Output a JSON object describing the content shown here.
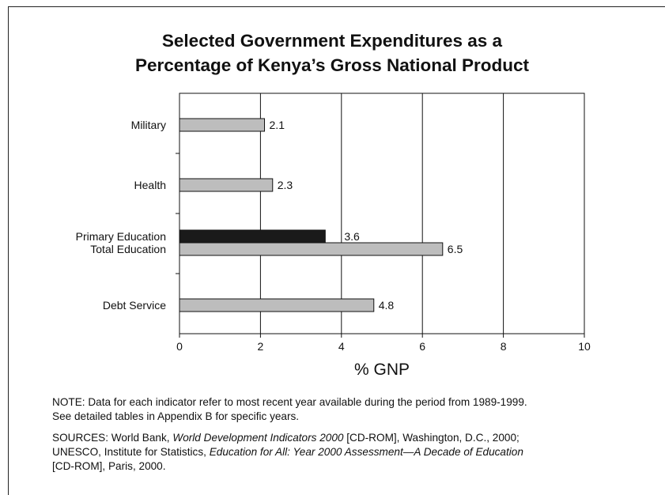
{
  "chart_data": {
    "type": "bar",
    "orientation": "horizontal",
    "title": [
      "Selected Government Expenditures as a",
      "Percentage of Kenya’s Gross National Product"
    ],
    "xlabel": "% GNP",
    "ylabel": "",
    "xlim": [
      0,
      10
    ],
    "xticks": [
      "0",
      "2",
      "4",
      "6",
      "8",
      "10"
    ],
    "grid": "vertical lines at every tick",
    "bars": [
      {
        "category": "Military",
        "value": 2.1,
        "label": "2.1",
        "color": "#bdbdbd",
        "slot": 0
      },
      {
        "category": "Health",
        "value": 2.3,
        "label": "2.3",
        "color": "#bdbdbd",
        "slot": 1
      },
      {
        "category": "Primary Education",
        "value": 3.6,
        "label": "3.6",
        "color": "#1a1a1a",
        "slot": 2,
        "sub": "upper"
      },
      {
        "category": "Total Education",
        "value": 6.5,
        "label": "6.5",
        "color": "#bdbdbd",
        "slot": 2,
        "sub": "lower"
      },
      {
        "category": "Debt Service",
        "value": 4.8,
        "label": "4.8",
        "color": "#bdbdbd",
        "slot": 3
      }
    ]
  },
  "note": {
    "line1": "NOTE: Data for each indicator refer to most recent year available during the period from 1989-1999.",
    "line2": "See detailed tables in Appendix B for specific years."
  },
  "sources": {
    "prefix1": "SOURCES: World Bank, ",
    "italic1": "World Development Indicators 2000",
    "suffix1": " [CD-ROM], Washington, D.C., 2000;",
    "prefix2": "UNESCO, Institute for Statistics, ",
    "italic2": "Education for All: Year 2000 Assessment—A Decade of Education",
    "line3": "[CD-ROM], Paris, 2000."
  }
}
